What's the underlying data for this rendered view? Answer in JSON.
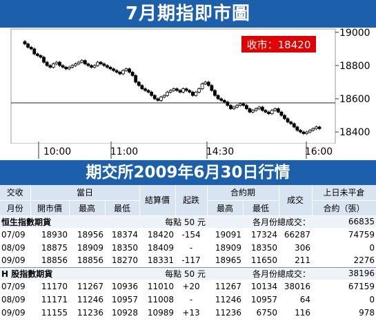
{
  "header": {
    "title": "7月期指即市圖"
  },
  "close_badge": "收市：18420",
  "chart_data": {
    "type": "candlestick",
    "x_ticks": [
      "10:00",
      "11:00",
      "14:30",
      "16:00"
    ],
    "y_ticks": [
      "19000",
      "18800",
      "18600",
      "18400"
    ],
    "ylim": [
      18330,
      19020
    ],
    "reference_line": 18575,
    "close": 18420,
    "prices": [
      18930,
      18910,
      18900,
      18870,
      18860,
      18850,
      18820,
      18800,
      18790,
      18810,
      18820,
      18800,
      18790,
      18780,
      18790,
      18800,
      18810,
      18820,
      18830,
      18810,
      18800,
      18790,
      18800,
      18820,
      18810,
      18800,
      18790,
      18780,
      18770,
      18760,
      18750,
      18770,
      18780,
      18760,
      18740,
      18700,
      18680,
      18660,
      18650,
      18640,
      18620,
      18600,
      18590,
      18610,
      18620,
      18640,
      18650,
      18660,
      18650,
      18640,
      18660,
      18650,
      18640,
      18620,
      18640,
      18660,
      18690,
      18700,
      18680,
      18650,
      18620,
      18600,
      18590,
      18580,
      18560,
      18540,
      18550,
      18560,
      18570,
      18560,
      18540,
      18520,
      18530,
      18540,
      18550,
      18530,
      18520,
      18510,
      18530,
      18540,
      18520,
      18500,
      18480,
      18460,
      18450,
      18430,
      18410,
      18400,
      18390,
      18400,
      18410,
      18420,
      18430,
      18420
    ]
  },
  "subheader": {
    "title": "期交所2009年6月30日行情"
  },
  "table": {
    "head1": [
      "交收",
      "當日",
      "結算價",
      "起跌",
      "合約期",
      "成交",
      "上日未平倉"
    ],
    "head2": [
      "月份",
      "開市價",
      "最高",
      "最低",
      "最高",
      "最低",
      "合約（張）"
    ],
    "sections": [
      {
        "name": "恒生指數期貨",
        "point_value": "每點 50 元",
        "total_label": "各月份總成交：",
        "total": "66835",
        "rows": [
          [
            "07/09",
            "18930",
            "18956",
            "18374",
            "18420",
            "-154",
            "19091",
            "17324",
            "66287",
            "74759"
          ],
          [
            "08/09",
            "18875",
            "18909",
            "18350",
            "18409",
            "-",
            "18909",
            "18350",
            "306",
            "0"
          ],
          [
            "09/09",
            "18856",
            "18856",
            "18270",
            "18331",
            "-117",
            "18965",
            "11650",
            "211",
            "2276"
          ]
        ]
      },
      {
        "name": "H 股指數期貨",
        "point_value": "每點 50 元",
        "total_label": "各月份總成交：",
        "total": "38196",
        "rows": [
          [
            "07/09",
            "11170",
            "11267",
            "10936",
            "11010",
            "+20",
            "11267",
            "10134",
            "38016",
            "67159"
          ],
          [
            "08/09",
            "11171",
            "11246",
            "10957",
            "11008",
            "-",
            "11246",
            "10957",
            "64",
            "0"
          ],
          [
            "09/09",
            "11155",
            "11236",
            "10928",
            "10989",
            "+13",
            "11236",
            "6750",
            "116",
            "978"
          ]
        ]
      }
    ]
  }
}
